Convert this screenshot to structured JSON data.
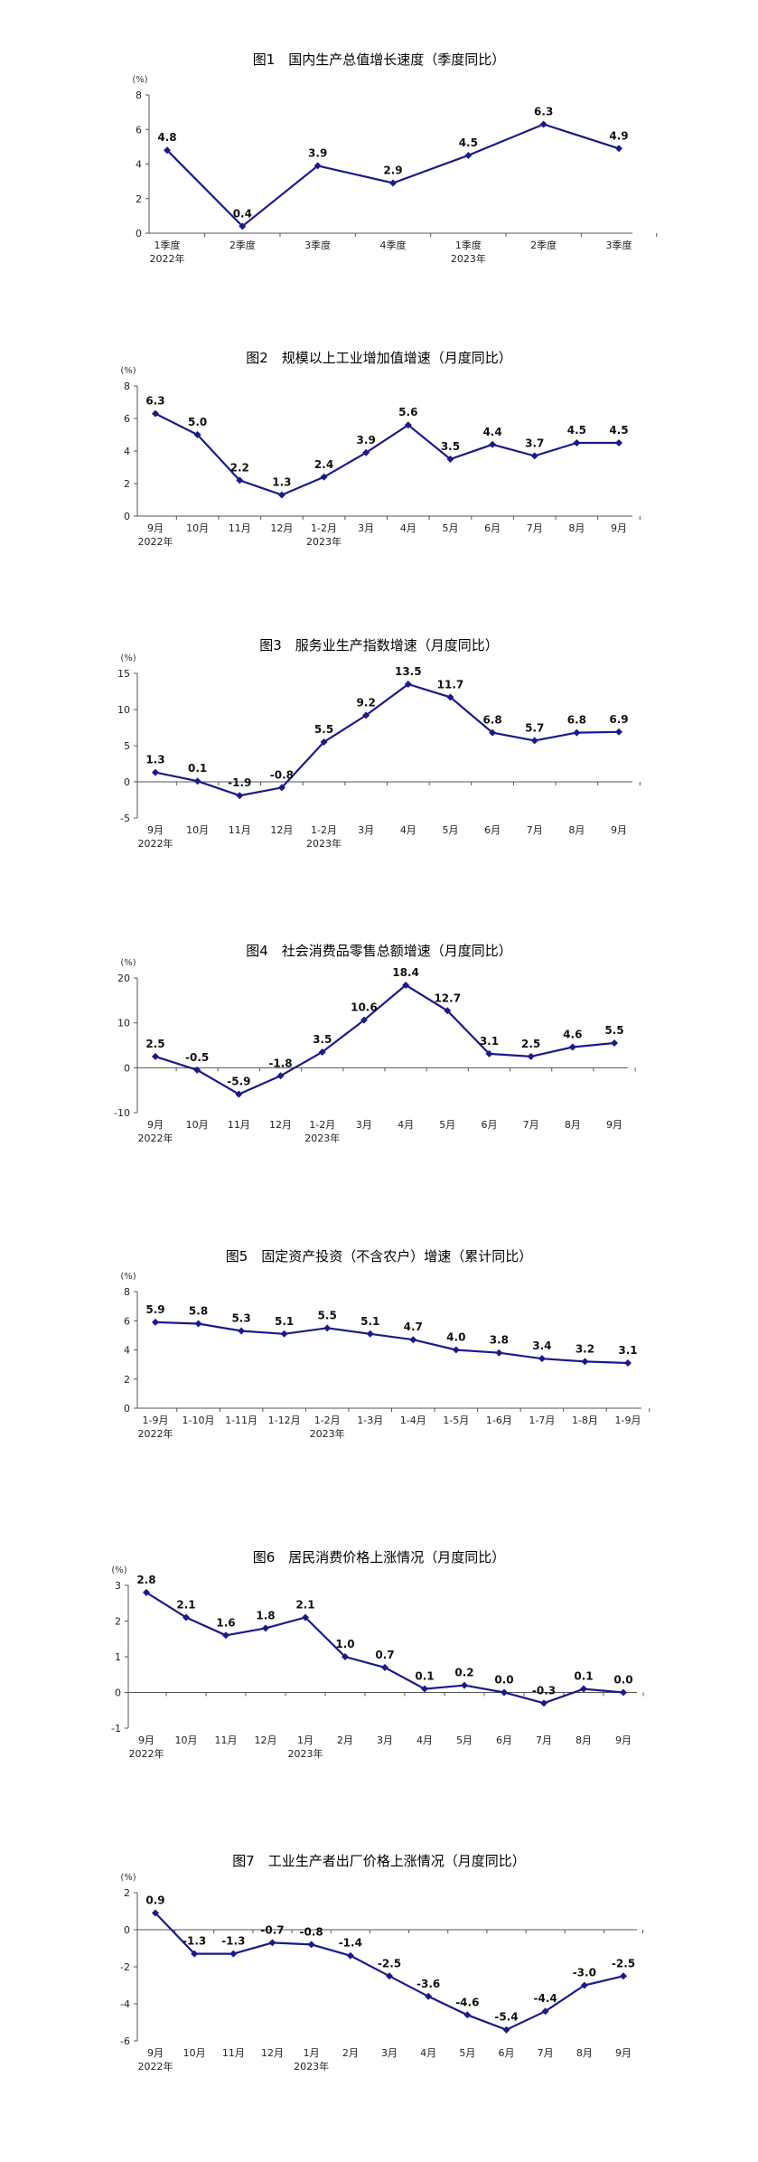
{
  "chart_data": [
    {
      "type": "line",
      "title": "图1　国内生产总值增长速度（季度同比）",
      "unit": "(%)",
      "categories": [
        "1季度",
        "2季度",
        "3季度",
        "4季度",
        "1季度",
        "2季度",
        "3季度"
      ],
      "year_labels": [
        {
          "index": 0,
          "label": "2022年"
        },
        {
          "index": 4,
          "label": "2023年"
        }
      ],
      "values": [
        4.8,
        0.4,
        3.9,
        2.9,
        4.5,
        6.3,
        4.9
      ],
      "value_labels": [
        "4.8",
        "0.4",
        "3.9",
        "2.9",
        "4.5",
        "6.3",
        "4.9"
      ],
      "ylim": [
        0,
        8
      ],
      "yticks": [
        0,
        2,
        4,
        6,
        8
      ],
      "color": "#1a1a8c"
    },
    {
      "type": "line",
      "title": "图2　规模以上工业增加值增速（月度同比）",
      "unit": "(%)",
      "categories": [
        "9月",
        "10月",
        "11月",
        "12月",
        "1-2月",
        "3月",
        "4月",
        "5月",
        "6月",
        "7月",
        "8月",
        "9月"
      ],
      "year_labels": [
        {
          "index": 0,
          "label": "2022年"
        },
        {
          "index": 4,
          "label": "2023年"
        }
      ],
      "values": [
        6.3,
        5.0,
        2.2,
        1.3,
        2.4,
        3.9,
        5.6,
        3.5,
        4.4,
        3.7,
        4.5,
        4.5
      ],
      "value_labels": [
        "6.3",
        "5.0",
        "2.2",
        "1.3",
        "2.4",
        "3.9",
        "5.6",
        "3.5",
        "4.4",
        "3.7",
        "4.5",
        "4.5"
      ],
      "ylim": [
        0,
        8
      ],
      "yticks": [
        0,
        2,
        4,
        6,
        8
      ],
      "color": "#1a1a8c"
    },
    {
      "type": "line",
      "title": "图3　服务业生产指数增速（月度同比）",
      "unit": "(%)",
      "categories": [
        "9月",
        "10月",
        "11月",
        "12月",
        "1-2月",
        "3月",
        "4月",
        "5月",
        "6月",
        "7月",
        "8月",
        "9月"
      ],
      "year_labels": [
        {
          "index": 0,
          "label": "2022年"
        },
        {
          "index": 4,
          "label": "2023年"
        }
      ],
      "values": [
        1.3,
        0.1,
        -1.9,
        -0.8,
        5.5,
        9.2,
        13.5,
        11.7,
        6.8,
        5.7,
        6.8,
        6.9
      ],
      "value_labels": [
        "1.3",
        "0.1",
        "-1.9",
        "-0.8",
        "5.5",
        "9.2",
        "13.5",
        "11.7",
        "6.8",
        "5.7",
        "6.8",
        "6.9"
      ],
      "ylim": [
        -5,
        15
      ],
      "yticks": [
        -5,
        0,
        5,
        10,
        15
      ],
      "color": "#1a1a8c"
    },
    {
      "type": "line",
      "title": "图4　社会消费品零售总额增速（月度同比）",
      "unit": "(%)",
      "categories": [
        "9月",
        "10月",
        "11月",
        "12月",
        "1-2月",
        "3月",
        "4月",
        "5月",
        "6月",
        "7月",
        "8月",
        "9月"
      ],
      "year_labels": [
        {
          "index": 0,
          "label": "2022年"
        },
        {
          "index": 4,
          "label": "2023年"
        }
      ],
      "values": [
        2.5,
        -0.5,
        -5.9,
        -1.8,
        3.5,
        10.6,
        18.4,
        12.7,
        3.1,
        2.5,
        4.6,
        5.5
      ],
      "value_labels": [
        "2.5",
        "-0.5",
        "-5.9",
        "-1.8",
        "3.5",
        "10.6",
        "18.4",
        "12.7",
        "3.1",
        "2.5",
        "4.6",
        "5.5"
      ],
      "ylim": [
        -10,
        20
      ],
      "yticks": [
        -10,
        0,
        10,
        20
      ],
      "color": "#1a1a8c"
    },
    {
      "type": "line",
      "title": "图5　固定资产投资（不含农户）增速（累计同比）",
      "unit": "(%)",
      "categories": [
        "1-9月",
        "1-10月",
        "1-11月",
        "1-12月",
        "1-2月",
        "1-3月",
        "1-4月",
        "1-5月",
        "1-6月",
        "1-7月",
        "1-8月",
        "1-9月"
      ],
      "year_labels": [
        {
          "index": 0,
          "label": "2022年"
        },
        {
          "index": 4,
          "label": "2023年"
        }
      ],
      "values": [
        5.9,
        5.8,
        5.3,
        5.1,
        5.5,
        5.1,
        4.7,
        4.0,
        3.8,
        3.4,
        3.2,
        3.1
      ],
      "value_labels": [
        "5.9",
        "5.8",
        "5.3",
        "5.1",
        "5.5",
        "5.1",
        "4.7",
        "4.0",
        "3.8",
        "3.4",
        "3.2",
        "3.1"
      ],
      "ylim": [
        0,
        8
      ],
      "yticks": [
        0,
        2,
        4,
        6,
        8
      ],
      "color": "#1a1a8c"
    },
    {
      "type": "line",
      "title": "图6　居民消费价格上涨情况（月度同比）",
      "unit": "(%)",
      "categories": [
        "9月",
        "10月",
        "11月",
        "12月",
        "1月",
        "2月",
        "3月",
        "4月",
        "5月",
        "6月",
        "7月",
        "8月",
        "9月"
      ],
      "year_labels": [
        {
          "index": 0,
          "label": "2022年"
        },
        {
          "index": 4,
          "label": "2023年"
        }
      ],
      "values": [
        2.8,
        2.1,
        1.6,
        1.8,
        2.1,
        1.0,
        0.7,
        0.1,
        0.2,
        0.0,
        -0.3,
        0.1,
        0.0
      ],
      "value_labels": [
        "2.8",
        "2.1",
        "1.6",
        "1.8",
        "2.1",
        "1.0",
        "0.7",
        "0.1",
        "0.2",
        "0.0",
        "-0.3",
        "0.1",
        "0.0"
      ],
      "ylim": [
        -1,
        3
      ],
      "yticks": [
        -1,
        0,
        1,
        2,
        3
      ],
      "color": "#1a1a8c"
    },
    {
      "type": "line",
      "title": "图7　工业生产者出厂价格上涨情况（月度同比）",
      "unit": "(%)",
      "categories": [
        "9月",
        "10月",
        "11月",
        "12月",
        "1月",
        "2月",
        "3月",
        "4月",
        "5月",
        "6月",
        "7月",
        "8月",
        "9月"
      ],
      "year_labels": [
        {
          "index": 0,
          "label": "2022年"
        },
        {
          "index": 4,
          "label": "2023年"
        }
      ],
      "values": [
        0.9,
        -1.3,
        -1.3,
        -0.7,
        -0.8,
        -1.4,
        -2.5,
        -3.6,
        -4.6,
        -5.4,
        -4.4,
        -3.0,
        -2.5
      ],
      "value_labels": [
        "0.9",
        "-1.3",
        "-1.3",
        "-0.7",
        "-0.8",
        "-1.4",
        "-2.5",
        "-3.6",
        "-4.6",
        "-5.4",
        "-4.4",
        "-3.0",
        "-2.5"
      ],
      "ylim": [
        -6,
        2
      ],
      "yticks": [
        -6,
        -4,
        -2,
        0,
        2
      ],
      "color": "#1a1a8c"
    }
  ]
}
